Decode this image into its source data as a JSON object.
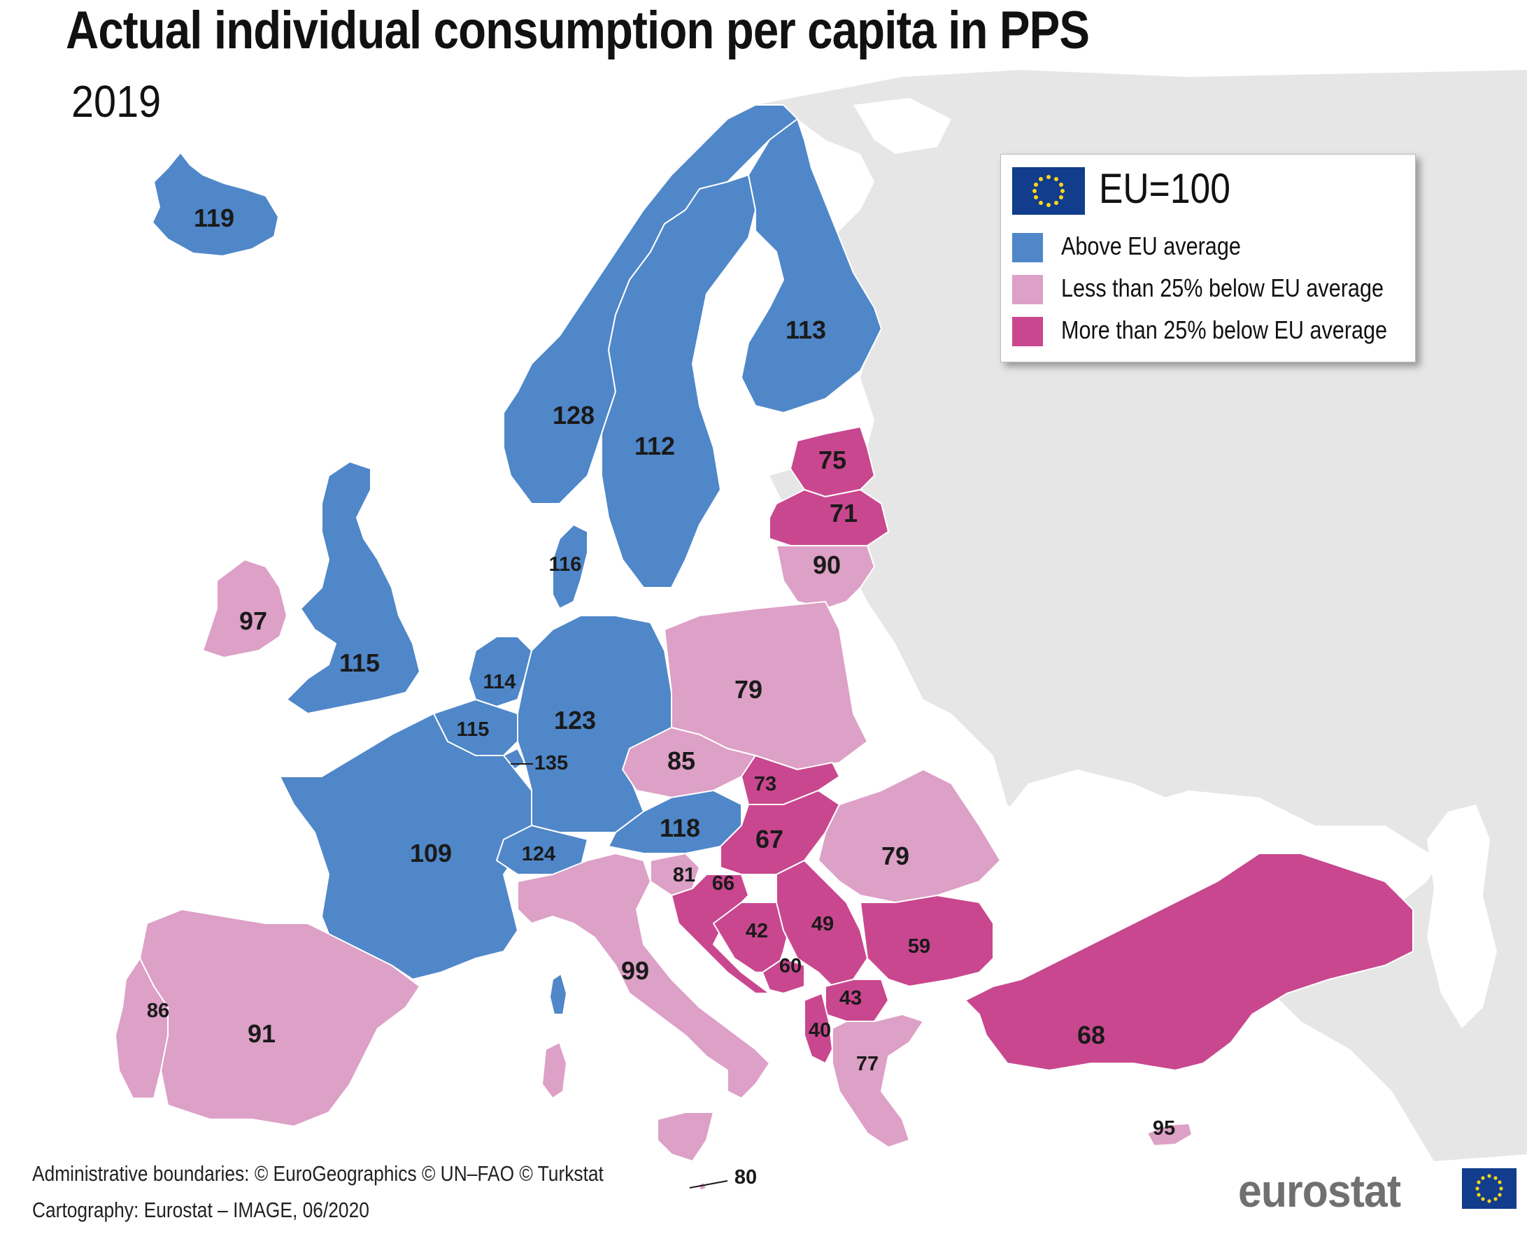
{
  "header": {
    "title": "Actual individual consumption per capita in PPS",
    "subtitle": "2019"
  },
  "legend": {
    "reference": "EU=100",
    "flag_icon": "eu-flag-icon",
    "items": [
      {
        "label": "Above EU average",
        "color": "#4f87c9"
      },
      {
        "label": "Less than 25% below EU average",
        "color": "#dda0c6"
      },
      {
        "label": "More than 25% below EU average",
        "color": "#c9478f"
      }
    ]
  },
  "colors": {
    "above": "#4f87c9",
    "below_less25": "#dda0c6",
    "below_more25": "#c9478f",
    "no_data": "#e6e6e6",
    "sea": "#ffffff"
  },
  "regions": {
    "iceland": {
      "value": "119",
      "class": "above"
    },
    "norway": {
      "value": "128",
      "class": "above"
    },
    "sweden": {
      "value": "112",
      "class": "above"
    },
    "finland": {
      "value": "113",
      "class": "above"
    },
    "estonia": {
      "value": "75",
      "class": "below_more25"
    },
    "latvia": {
      "value": "71",
      "class": "below_more25"
    },
    "lithuania": {
      "value": "90",
      "class": "below_less25"
    },
    "denmark": {
      "value": "116",
      "class": "above"
    },
    "ireland": {
      "value": "97",
      "class": "below_less25"
    },
    "united_kingdom": {
      "value": "115",
      "class": "above"
    },
    "netherlands": {
      "value": "114",
      "class": "above"
    },
    "belgium": {
      "value": "115",
      "class": "above"
    },
    "luxembourg": {
      "value": "135",
      "class": "above"
    },
    "germany": {
      "value": "123",
      "class": "above"
    },
    "poland": {
      "value": "79",
      "class": "below_less25"
    },
    "czechia": {
      "value": "85",
      "class": "below_less25"
    },
    "slovakia": {
      "value": "73",
      "class": "below_more25"
    },
    "austria": {
      "value": "118",
      "class": "above"
    },
    "hungary": {
      "value": "67",
      "class": "below_more25"
    },
    "romania": {
      "value": "79",
      "class": "below_less25"
    },
    "france": {
      "value": "109",
      "class": "above"
    },
    "switzerland": {
      "value": "124",
      "class": "above"
    },
    "slovenia": {
      "value": "81",
      "class": "below_less25"
    },
    "croatia": {
      "value": "66",
      "class": "below_more25"
    },
    "bosnia": {
      "value": "42",
      "class": "below_more25"
    },
    "serbia": {
      "value": "49",
      "class": "below_more25"
    },
    "montenegro": {
      "value": "60",
      "class": "below_more25"
    },
    "north_macedonia": {
      "value": "43",
      "class": "below_more25"
    },
    "albania": {
      "value": "40",
      "class": "below_more25"
    },
    "bulgaria": {
      "value": "59",
      "class": "below_more25"
    },
    "greece": {
      "value": "77",
      "class": "below_less25"
    },
    "turkey": {
      "value": "68",
      "class": "below_more25"
    },
    "cyprus": {
      "value": "95",
      "class": "below_less25"
    },
    "italy": {
      "value": "99",
      "class": "below_less25"
    },
    "spain": {
      "value": "91",
      "class": "below_less25"
    },
    "portugal": {
      "value": "86",
      "class": "below_less25"
    },
    "malta": {
      "value": "80",
      "class": "below_less25"
    }
  },
  "footer": {
    "credit_1": "Administrative boundaries: © EuroGeographics © UN–FAO © Turkstat",
    "credit_2": "Cartography: Eurostat – IMAGE, 06/2020",
    "logo_text": "eurostat",
    "logo_icon": "eu-flag-icon"
  }
}
